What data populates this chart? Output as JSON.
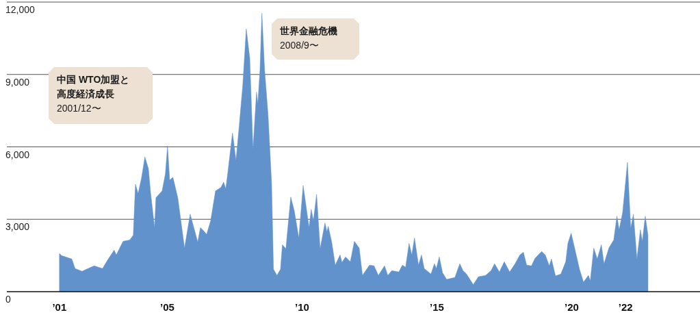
{
  "chart_data": {
    "type": "area",
    "x": [
      2001.0,
      2001.08,
      2001.46,
      2001.58,
      2001.84,
      2002.17,
      2002.29,
      2002.6,
      2002.78,
      2003.03,
      2003.11,
      2003.36,
      2003.61,
      2003.74,
      2003.82,
      2003.92,
      2004.05,
      2004.17,
      2004.3,
      2004.38,
      2004.53,
      2004.58,
      2004.81,
      2004.93,
      2005.01,
      2005.09,
      2005.21,
      2005.39,
      2005.64,
      2005.85,
      2006.13,
      2006.23,
      2006.36,
      2006.46,
      2006.61,
      2006.79,
      2006.99,
      2007.09,
      2007.17,
      2007.24,
      2007.42,
      2007.55,
      2007.67,
      2007.8,
      2007.93,
      2008.06,
      2008.18,
      2008.31,
      2008.36,
      2008.44,
      2008.51,
      2008.61,
      2008.74,
      2008.87,
      2008.94,
      2009.07,
      2009.2,
      2009.27,
      2009.4,
      2009.58,
      2009.71,
      2009.88,
      2010.04,
      2010.26,
      2010.34,
      2010.42,
      2010.54,
      2010.67,
      2010.85,
      2010.92,
      2010.97,
      2011.1,
      2011.23,
      2011.41,
      2011.48,
      2011.61,
      2011.79,
      2011.94,
      2012.12,
      2012.24,
      2012.5,
      2012.67,
      2012.83,
      2013.06,
      2013.18,
      2013.33,
      2013.59,
      2013.72,
      2013.84,
      2013.97,
      2014.07,
      2014.17,
      2014.32,
      2014.43,
      2014.53,
      2014.78,
      2014.91,
      2014.98,
      2015.09,
      2015.21,
      2015.36,
      2015.67,
      2015.85,
      2015.97,
      2016.1,
      2016.35,
      2016.54,
      2016.81,
      2017.01,
      2017.14,
      2017.32,
      2017.5,
      2017.7,
      2017.9,
      2018.08,
      2018.21,
      2018.33,
      2018.51,
      2018.64,
      2018.89,
      2019.02,
      2019.17,
      2019.25,
      2019.4,
      2019.6,
      2019.78,
      2019.86,
      2019.98,
      2020.11,
      2020.29,
      2020.44,
      2020.62,
      2020.69,
      2020.82,
      2020.95,
      2021.1,
      2021.2,
      2021.38,
      2021.56,
      2021.68,
      2021.76,
      2021.89,
      2022.07,
      2022.19,
      2022.29,
      2022.42,
      2022.55,
      2022.62,
      2022.73,
      2022.83
    ],
    "series": [
      {
        "color": "#6192cb",
        "values": [
          1580,
          1495,
          1354,
          960,
          846,
          1015,
          1072,
          960,
          1298,
          1720,
          1523,
          2087,
          2144,
          2341,
          4457,
          4062,
          4739,
          5585,
          5106,
          4118,
          2652,
          3893,
          4175,
          4880,
          6037,
          4626,
          4739,
          3893,
          1805,
          3216,
          2059,
          2652,
          2511,
          2370,
          2934,
          4175,
          4316,
          4542,
          4260,
          4880,
          6573,
          5444,
          6883,
          8547,
          10889,
          9676,
          5896,
          8265,
          7786,
          9196,
          11537,
          9196,
          7306,
          4485,
          931,
          677,
          931,
          1946,
          1777,
          3921,
          3357,
          2228,
          4400,
          2652,
          3413,
          2934,
          4034,
          1777,
          2849,
          2482,
          2708,
          2059,
          1100,
          1523,
          1213,
          1439,
          1241,
          2087,
          1805,
          677,
          1100,
          1072,
          677,
          1072,
          677,
          874,
          818,
          1100,
          1016,
          2003,
          1523,
          2228,
          1100,
          1523,
          959,
          733,
          1157,
          959,
          1439,
          790,
          508,
          592,
          1157,
          874,
          733,
          290,
          620,
          677,
          874,
          1157,
          818,
          1241,
          818,
          1157,
          1523,
          1636,
          1100,
          1072,
          1382,
          1664,
          1523,
          1072,
          1354,
          649,
          733,
          1241,
          2003,
          2426,
          1805,
          931,
          395,
          677,
          451,
          1805,
          1354,
          1946,
          1157,
          1805,
          2144,
          3131,
          2567,
          3272,
          5360,
          2623,
          3216,
          1354,
          2567,
          2087,
          3131,
          2341
        ]
      }
    ],
    "xlim": [
      1999.05,
      2024.76
    ],
    "xticks": [
      {
        "value": 2001,
        "label": "’01"
      },
      {
        "value": 2005,
        "label": "’05"
      },
      {
        "value": 2010,
        "label": "’10"
      },
      {
        "value": 2015,
        "label": "’15"
      },
      {
        "value": 2020,
        "label": "’20"
      },
      {
        "value": 2022,
        "label": "’22"
      }
    ],
    "ylim": [
      0,
      12000
    ],
    "yticks": [
      0,
      {
        "value": 3000,
        "label": "3,000"
      },
      {
        "value": 6000,
        "label": "6,000"
      },
      {
        "value": 9000,
        "label": "9,000"
      },
      {
        "value": 12000,
        "label": "12,000"
      }
    ],
    "grid": "y",
    "annotations": [
      "中国 WTO加盟と",
      "高度経済成長",
      "2001/12〜",
      "世界金融危機",
      "2008/9〜"
    ]
  }
}
